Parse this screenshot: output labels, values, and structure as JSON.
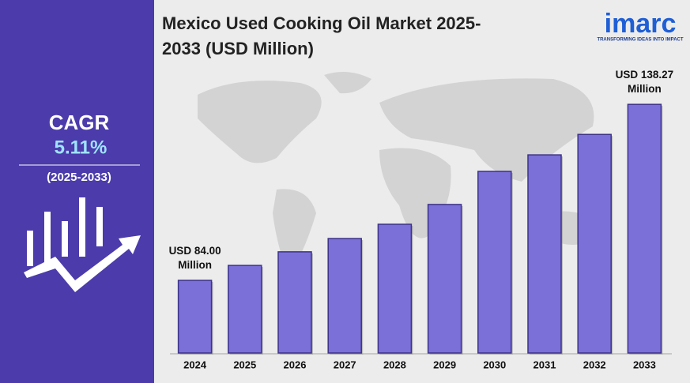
{
  "sidebar": {
    "cagr_label": "CAGR",
    "cagr_value": "5.11%",
    "period": "(2025-2033)"
  },
  "logo": {
    "name": "imarc",
    "tagline": "TRANSFORMING IDEAS INTO IMPACT"
  },
  "chart_data": {
    "type": "bar",
    "title": "Mexico Used Cooking Oil Market 2025-2033 (USD Million)",
    "categories": [
      "2024",
      "2025",
      "2026",
      "2027",
      "2028",
      "2029",
      "2030",
      "2031",
      "2032",
      "2033"
    ],
    "values": [
      84.0,
      88.6,
      92.8,
      96.9,
      101.3,
      107.4,
      117.6,
      122.7,
      129.0,
      138.27
    ],
    "value_labels": [
      "USD 84.00 Million",
      null,
      null,
      null,
      null,
      null,
      null,
      null,
      null,
      "USD 138.27 Million"
    ],
    "color": "#7b70d8",
    "ylim": [
      61.6,
      150
    ]
  }
}
